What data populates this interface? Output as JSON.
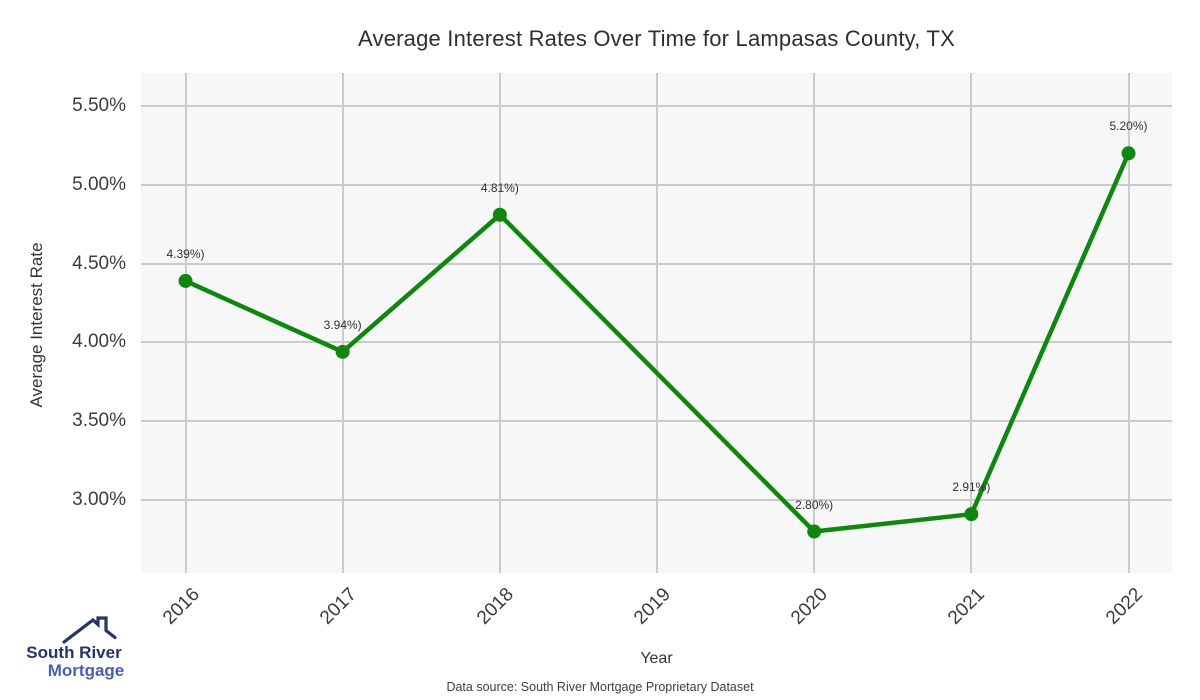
{
  "chart": {
    "title": "Average Interest Rates Over Time for Lampasas County, TX",
    "xlabel": "Year",
    "ylabel": "Average Interest Rate",
    "source_note": "Data source: South River Mortgage Proprietary Dataset"
  },
  "chart_data": {
    "type": "line",
    "title": "Average Interest Rates Over Time for Lampasas County, TX",
    "xlabel": "Year",
    "ylabel": "Average Interest Rate",
    "x": [
      2016,
      2017,
      2018,
      2019,
      2020,
      2021,
      2022
    ],
    "x_tick_labels": [
      "2016",
      "2017",
      "2018",
      "2019",
      "2020",
      "2021",
      "2022"
    ],
    "series": [
      {
        "name": "Average Interest Rate",
        "values": [
          4.39,
          3.94,
          4.81,
          null,
          2.8,
          2.91,
          5.2
        ]
      }
    ],
    "point_labels": [
      "4.39%)",
      "3.94%)",
      "4.81%)",
      null,
      "2.80%)",
      "2.91%)",
      "5.20%)"
    ],
    "y_ticks": [
      {
        "value": 5.5,
        "label": "5.50%"
      },
      {
        "value": 5.0,
        "label": "5.00%"
      },
      {
        "value": 4.5,
        "label": "4.50%"
      },
      {
        "value": 4.0,
        "label": "4.00%"
      },
      {
        "value": 3.5,
        "label": "3.50%"
      },
      {
        "value": 3.0,
        "label": "3.00%"
      }
    ],
    "ylim": [
      2.77,
      5.61
    ],
    "grid": true,
    "legend": false,
    "line_color": "#0f870f",
    "marker_color": "#0f870f",
    "panel_bg": "#f7f7f7",
    "grid_color": "#cbcbcb"
  },
  "logo": {
    "icon": "house-roof-icon",
    "line1": "South River",
    "line2": "Mortgage",
    "color1": "#253469",
    "color2": "#4a5fad"
  }
}
